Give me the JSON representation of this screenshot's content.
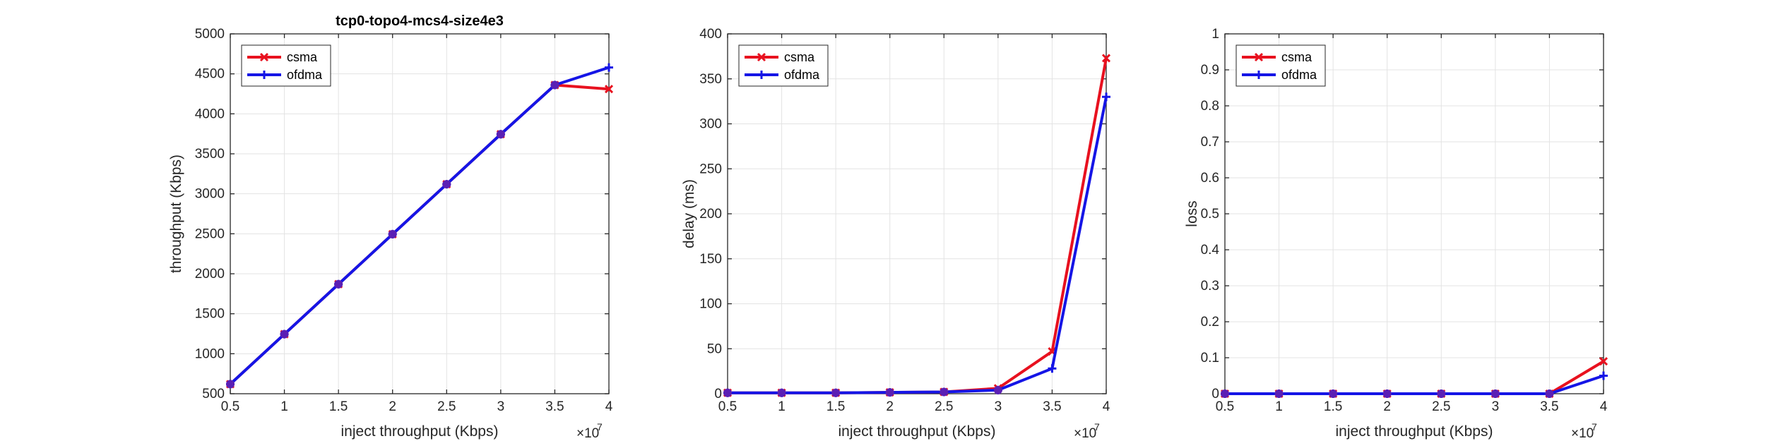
{
  "chart_data": [
    {
      "type": "line",
      "title": "tcp0-topo4-mcs4-size4e3",
      "xlabel": "inject throughput (Kbps)",
      "ylabel": "throughput (Kbps)",
      "x": [
        5000000,
        10000000,
        15000000,
        20000000,
        25000000,
        30000000,
        35000000,
        40000000
      ],
      "xlim": [
        5000000,
        40000000
      ],
      "ylim": [
        500,
        5000
      ],
      "xticks": [
        0.5,
        1,
        1.5,
        2,
        2.5,
        3,
        3.5,
        4
      ],
      "yticks": [
        500,
        1000,
        1500,
        2000,
        2500,
        3000,
        3500,
        4000,
        4500,
        5000
      ],
      "x_multiplier": "×10",
      "x_multiplier_exp": "7",
      "grid": true,
      "legend_position": "top-left",
      "series": [
        {
          "name": "csma",
          "color": "#e8111f",
          "marker": "x",
          "values": [
            620,
            1245,
            1870,
            2495,
            3120,
            3745,
            4360,
            4310
          ]
        },
        {
          "name": "ofdma",
          "color": "#1515e6",
          "marker": "+",
          "values": [
            620,
            1245,
            1870,
            2495,
            3120,
            3745,
            4360,
            4580
          ]
        }
      ]
    },
    {
      "type": "line",
      "title": "",
      "xlabel": "inject throughput (Kbps)",
      "ylabel": "delay (ms)",
      "x": [
        5000000,
        10000000,
        15000000,
        20000000,
        25000000,
        30000000,
        35000000,
        40000000
      ],
      "xlim": [
        5000000,
        40000000
      ],
      "ylim": [
        0,
        400
      ],
      "xticks": [
        0.5,
        1,
        1.5,
        2,
        2.5,
        3,
        3.5,
        4
      ],
      "yticks": [
        0,
        50,
        100,
        150,
        200,
        250,
        300,
        350,
        400
      ],
      "x_multiplier": "×10",
      "x_multiplier_exp": "7",
      "grid": true,
      "legend_position": "top-left",
      "series": [
        {
          "name": "csma",
          "color": "#e8111f",
          "marker": "x",
          "values": [
            1,
            1,
            1,
            1.5,
            2,
            6,
            47,
            373
          ]
        },
        {
          "name": "ofdma",
          "color": "#1515e6",
          "marker": "+",
          "values": [
            1,
            1,
            1,
            1.5,
            2,
            4,
            28,
            330
          ]
        }
      ]
    },
    {
      "type": "line",
      "title": "",
      "xlabel": "inject throughput (Kbps)",
      "ylabel": "loss",
      "x": [
        5000000,
        10000000,
        15000000,
        20000000,
        25000000,
        30000000,
        35000000,
        40000000
      ],
      "xlim": [
        5000000,
        40000000
      ],
      "ylim": [
        0,
        1
      ],
      "xticks": [
        0.5,
        1,
        1.5,
        2,
        2.5,
        3,
        3.5,
        4
      ],
      "yticks": [
        0,
        0.1,
        0.2,
        0.3,
        0.4,
        0.5,
        0.6,
        0.7,
        0.8,
        0.9,
        1
      ],
      "x_multiplier": "×10",
      "x_multiplier_exp": "7",
      "grid": true,
      "legend_position": "top-left",
      "series": [
        {
          "name": "csma",
          "color": "#e8111f",
          "marker": "x",
          "values": [
            0,
            0,
            0,
            0,
            0,
            0,
            0,
            0.09
          ]
        },
        {
          "name": "ofdma",
          "color": "#1515e6",
          "marker": "+",
          "values": [
            0,
            0,
            0,
            0,
            0,
            0,
            0,
            0.05
          ]
        }
      ]
    }
  ]
}
